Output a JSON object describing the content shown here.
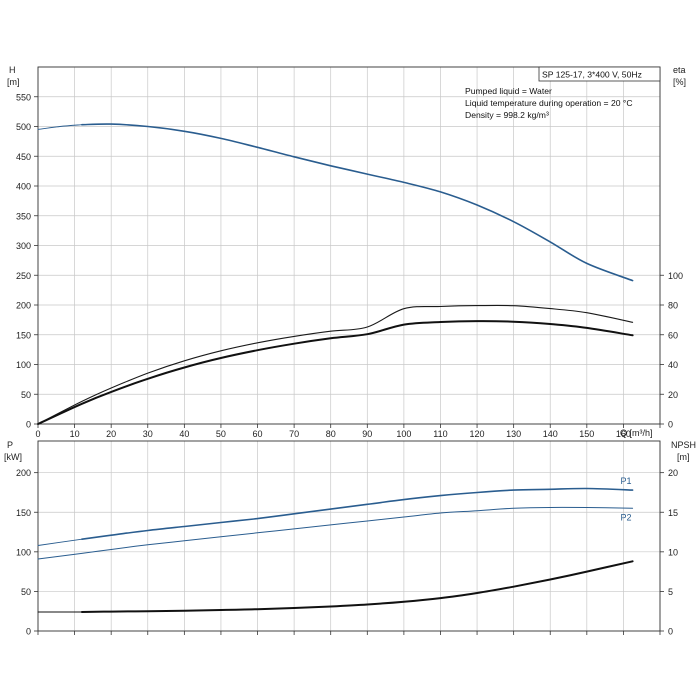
{
  "info": {
    "model": "SP 125-17, 3*400 V, 50Hz",
    "liquid": "Pumped liquid = Water",
    "temperature": "Liquid temperature during operation = 20 °C",
    "density": "Density = 998.2 kg/m³"
  },
  "chart_data": [
    {
      "type": "line",
      "panel": "head",
      "ylabel_left": "H",
      "ylabel_left_unit": "[m]",
      "ylabel_right": "eta",
      "ylabel_right_unit": "[%]",
      "xlabel": "Q [m³/h]",
      "xlim": [
        0,
        170
      ],
      "xticks": [
        0,
        10,
        20,
        30,
        40,
        50,
        60,
        70,
        80,
        90,
        100,
        110,
        120,
        130,
        140,
        150,
        160
      ],
      "ylim_left": [
        0,
        600
      ],
      "yticks_left": [
        0,
        50,
        100,
        150,
        200,
        250,
        300,
        350,
        400,
        450,
        500,
        550
      ],
      "yticks_right": [
        0,
        20,
        40,
        60,
        80,
        100
      ],
      "ylim_right": [
        0,
        240
      ],
      "grid": true,
      "series": [
        {
          "axis": "left",
          "color": "#2a5d8f",
          "width": 1.6,
          "x": [
            12,
            20,
            30,
            40,
            50,
            60,
            70,
            80,
            90,
            100,
            110,
            120,
            130,
            140,
            150,
            162.5
          ],
          "y": [
            503,
            504,
            500,
            492,
            480,
            465,
            449,
            434,
            420,
            406,
            390,
            368,
            340,
            306,
            270,
            241
          ]
        },
        {
          "axis": "left",
          "color": "#2a5d8f",
          "width": 0.9,
          "x": [
            0,
            6,
            12
          ],
          "y": [
            495,
            500,
            503
          ]
        },
        {
          "axis": "right",
          "color": "#1a1a1a",
          "width": 1.1,
          "x": [
            0,
            12,
            20,
            30,
            40,
            50,
            60,
            70,
            80,
            90,
            100,
            110,
            120,
            130,
            140,
            150,
            162.5
          ],
          "y": [
            0,
            15.2,
            24.2,
            34.2,
            42.5,
            49.2,
            54.6,
            58.9,
            62.4,
            65.2,
            77.5,
            79,
            79.6,
            79.5,
            77.6,
            74.8,
            68.4
          ]
        },
        {
          "axis": "right",
          "color": "#111111",
          "width": 2.0,
          "x": [
            0,
            12,
            20,
            30,
            40,
            50,
            60,
            70,
            80,
            90,
            100,
            110,
            120,
            130,
            140,
            150,
            162.5
          ],
          "y": [
            0,
            13.6,
            21.6,
            30.4,
            38.0,
            44.4,
            49.6,
            54.0,
            57.6,
            60.4,
            66.8,
            68.6,
            69.2,
            68.8,
            67.2,
            64.6,
            59.6
          ]
        }
      ]
    },
    {
      "type": "line",
      "panel": "power",
      "ylabel_left": "P",
      "ylabel_left_unit": "[kW]",
      "ylabel_right": "NPSH",
      "ylabel_right_unit": "[m]",
      "xlim": [
        0,
        170
      ],
      "ylim_left": [
        0,
        240
      ],
      "yticks_left": [
        0,
        50,
        100,
        150,
        200
      ],
      "yticks_right": [
        0,
        5,
        10,
        15,
        20
      ],
      "ylim_right": [
        0,
        24
      ],
      "grid": true,
      "series": [
        {
          "name": "P1",
          "axis": "left",
          "color": "#2a5d8f",
          "width": 1.6,
          "x": [
            12,
            20,
            30,
            40,
            50,
            60,
            70,
            80,
            90,
            100,
            110,
            120,
            130,
            140,
            150,
            162.5
          ],
          "y": [
            116,
            121,
            127,
            132,
            137,
            142,
            148,
            154,
            160,
            166,
            171,
            175,
            178,
            179,
            180,
            178
          ]
        },
        {
          "axis": "left",
          "color": "#2a5d8f",
          "width": 0.9,
          "x": [
            0,
            12
          ],
          "y": [
            108,
            116
          ]
        },
        {
          "name": "P2",
          "axis": "left",
          "color": "#2a5d8f",
          "width": 1.0,
          "x": [
            0,
            12,
            20,
            30,
            40,
            50,
            60,
            70,
            80,
            90,
            100,
            110,
            120,
            130,
            140,
            150,
            162.5
          ],
          "y": [
            91,
            98,
            103,
            109,
            114,
            119,
            124,
            129,
            134,
            139,
            144,
            149,
            152,
            155,
            156,
            156,
            155
          ]
        },
        {
          "axis": "right",
          "color": "#111111",
          "width": 2.0,
          "x": [
            12,
            20,
            30,
            40,
            50,
            60,
            70,
            80,
            90,
            100,
            110,
            120,
            130,
            140,
            150,
            162.5
          ],
          "y": [
            2.4,
            2.45,
            2.5,
            2.55,
            2.65,
            2.75,
            2.9,
            3.1,
            3.35,
            3.7,
            4.15,
            4.8,
            5.6,
            6.5,
            7.5,
            8.8
          ]
        },
        {
          "axis": "right",
          "color": "#111111",
          "width": 0.9,
          "x": [
            0,
            12
          ],
          "y": [
            2.4,
            2.4
          ]
        }
      ]
    }
  ]
}
